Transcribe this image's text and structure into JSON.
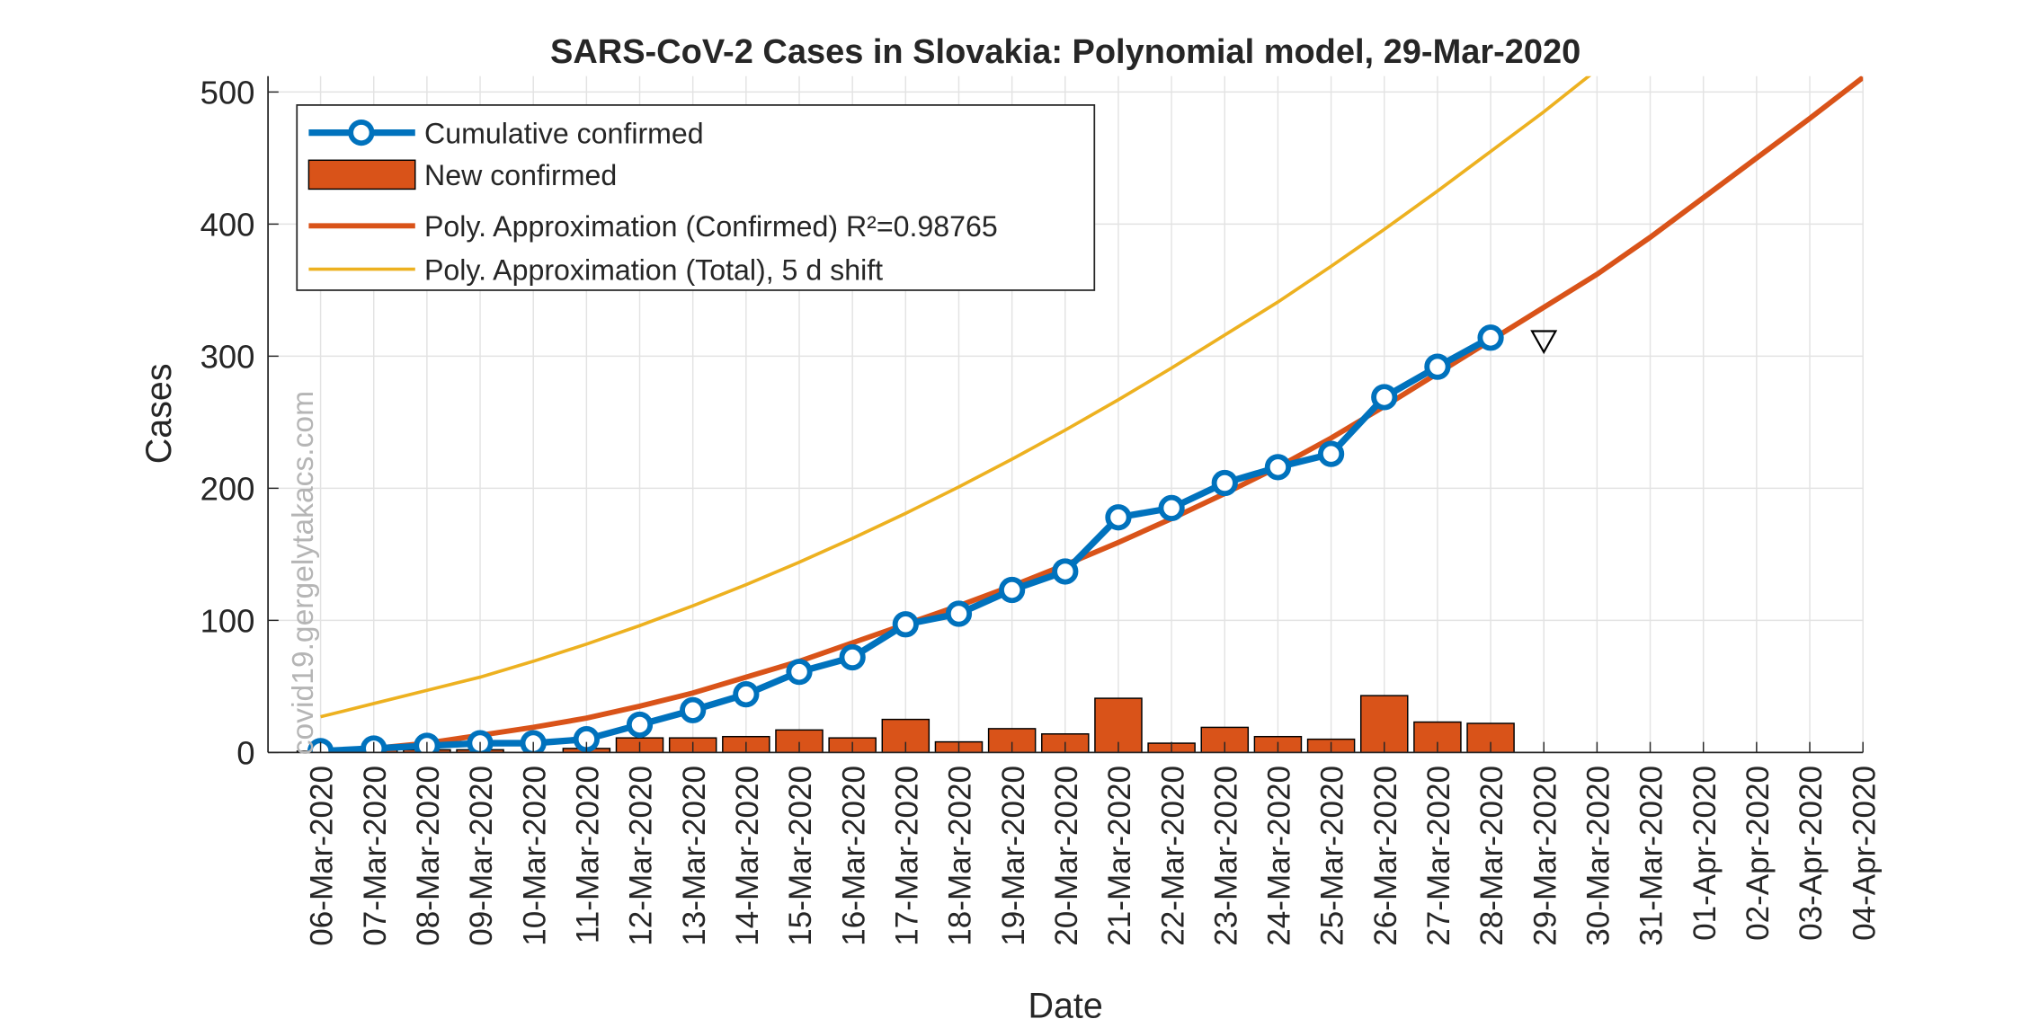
{
  "chart_data": {
    "type": "bar-line",
    "title": "SARS-CoV-2 Cases in Slovakia: Polynomial model, 29-Mar-2020",
    "x_label": "Date",
    "y_label": "Cases",
    "watermark": "covid19.gergelytakacs.com",
    "categories": [
      "06-Mar-2020",
      "07-Mar-2020",
      "08-Mar-2020",
      "09-Mar-2020",
      "10-Mar-2020",
      "11-Mar-2020",
      "12-Mar-2020",
      "13-Mar-2020",
      "14-Mar-2020",
      "15-Mar-2020",
      "16-Mar-2020",
      "17-Mar-2020",
      "18-Mar-2020",
      "19-Mar-2020",
      "20-Mar-2020",
      "21-Mar-2020",
      "22-Mar-2020",
      "23-Mar-2020",
      "24-Mar-2020",
      "25-Mar-2020",
      "26-Mar-2020",
      "27-Mar-2020",
      "28-Mar-2020",
      "29-Mar-2020",
      "30-Mar-2020",
      "31-Mar-2020",
      "01-Apr-2020",
      "02-Apr-2020",
      "03-Apr-2020",
      "04-Apr-2020"
    ],
    "series": [
      {
        "name": "Cumulative confirmed",
        "kind": "line-marker",
        "color": "#0072BD",
        "values": [
          1,
          3,
          5,
          7,
          7,
          10,
          21,
          32,
          44,
          61,
          72,
          97,
          105,
          123,
          137,
          178,
          185,
          204,
          216,
          226,
          269,
          292,
          314,
          null,
          null,
          null,
          null,
          null,
          null,
          null
        ]
      },
      {
        "name": "New confirmed",
        "kind": "bar",
        "color": "#D95319",
        "values": [
          1,
          2,
          2,
          2,
          0,
          3,
          11,
          11,
          12,
          17,
          11,
          25,
          8,
          18,
          14,
          41,
          7,
          19,
          12,
          10,
          43,
          23,
          22,
          null,
          null,
          null,
          null,
          null,
          null,
          null
        ]
      },
      {
        "name": "Poly. Approximation (Confirmed) R²=0.98765",
        "kind": "line",
        "color": "#D95319",
        "values": [
          1,
          3,
          7,
          13,
          19,
          26,
          35,
          45,
          57,
          69,
          83,
          97,
          111,
          126,
          142,
          159,
          177,
          196,
          216,
          238,
          262,
          287,
          312,
          337,
          362,
          390,
          420,
          450,
          480,
          511
        ]
      },
      {
        "name": "Poly. Approximation (Total), 5 d shift",
        "kind": "thin-line",
        "color": "#EDB120",
        "values": [
          27,
          37,
          47,
          57,
          69,
          82,
          96,
          111,
          127,
          144,
          162,
          181,
          201,
          222,
          244,
          267,
          291,
          316,
          341,
          368,
          396,
          425,
          455,
          485,
          517,
          null,
          null,
          null,
          null,
          null
        ]
      }
    ],
    "forecast_marker": {
      "category": "29-Mar-2020",
      "value": 311
    },
    "ylim": [
      0,
      512
    ],
    "yticks": [
      0,
      100,
      200,
      300,
      400,
      500
    ],
    "grid": true,
    "legend": "upper-left"
  }
}
